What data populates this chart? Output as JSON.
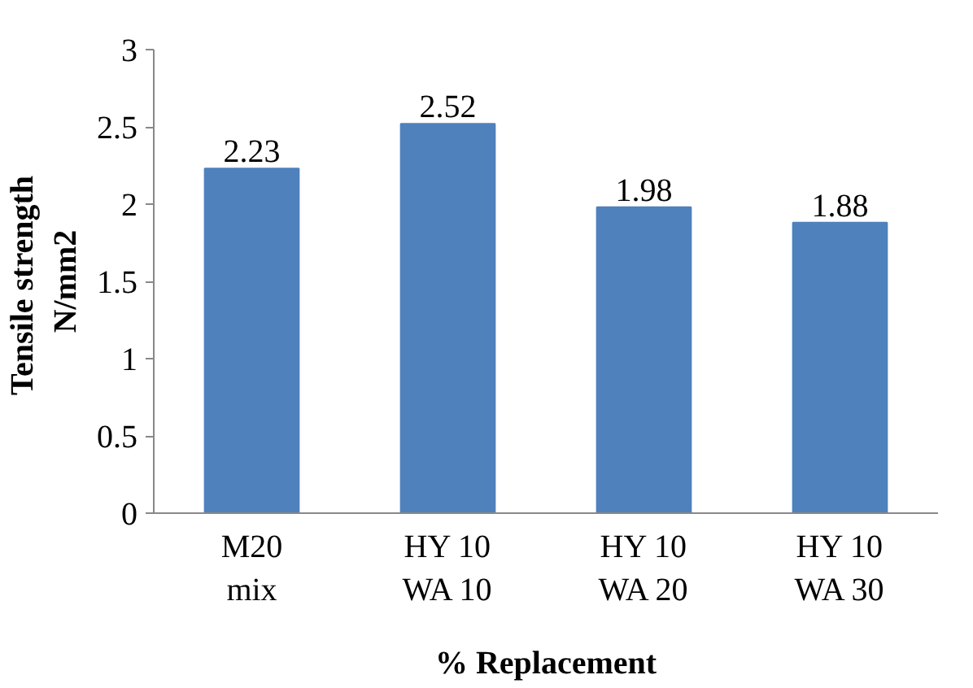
{
  "chart_data": {
    "type": "bar",
    "categories": [
      "M20 mix",
      "HY 10 WA 10",
      "HY 10 WA 20",
      "HY 10 WA 30"
    ],
    "values": [
      2.23,
      2.52,
      1.98,
      1.88
    ],
    "color": "#4f81bd",
    "ylim": [
      0,
      3
    ],
    "yticks": [
      0,
      0.5,
      1,
      1.5,
      2,
      2.5,
      3
    ],
    "ylabel": "Tensile  strength\nN/mm2",
    "xlabel": "% Replacement",
    "data_labels": true,
    "grid": false
  }
}
